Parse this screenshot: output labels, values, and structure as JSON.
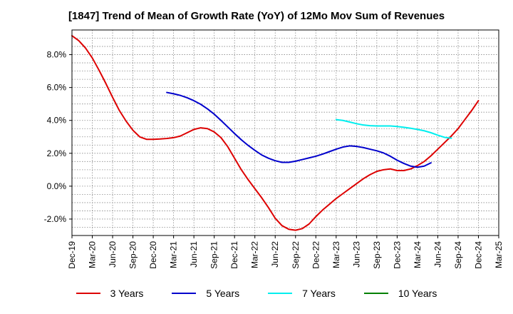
{
  "chart_data": {
    "type": "line",
    "title": "[1847]  Trend of Mean of Growth Rate (YoY) of 12Mo Mov Sum of Revenues",
    "xlabel": "",
    "ylabel": "",
    "ylim": [
      -3.0,
      9.5
    ],
    "y_ticks": [
      -2.0,
      0.0,
      2.0,
      4.0,
      6.0,
      8.0
    ],
    "y_tick_labels": [
      "-2.0%",
      "0.0%",
      "2.0%",
      "4.0%",
      "6.0%",
      "8.0%"
    ],
    "x_start": "Dec-19",
    "x_end": "Mar-25",
    "x_tick_labels": [
      "Dec-19",
      "Mar-20",
      "Jun-20",
      "Sep-20",
      "Dec-20",
      "Mar-21",
      "Jun-21",
      "Sep-21",
      "Dec-21",
      "Mar-22",
      "Jun-22",
      "Sep-22",
      "Dec-22",
      "Mar-23",
      "Jun-23",
      "Sep-23",
      "Dec-23",
      "Mar-24",
      "Jun-24",
      "Sep-24",
      "Dec-24",
      "Mar-25"
    ],
    "grid": true,
    "legend_position": "bottom",
    "series": [
      {
        "name": "3 Years",
        "color": "#dd0000",
        "start_month": 0,
        "values": [
          9.15,
          8.85,
          8.4,
          7.8,
          7.05,
          6.25,
          5.4,
          4.6,
          3.95,
          3.4,
          3.0,
          2.85,
          2.85,
          2.87,
          2.9,
          2.95,
          3.05,
          3.25,
          3.45,
          3.55,
          3.5,
          3.3,
          2.95,
          2.4,
          1.7,
          1.0,
          0.4,
          -0.15,
          -0.7,
          -1.3,
          -1.95,
          -2.4,
          -2.62,
          -2.68,
          -2.58,
          -2.3,
          -1.85,
          -1.45,
          -1.1,
          -0.75,
          -0.45,
          -0.15,
          0.15,
          0.45,
          0.7,
          0.9,
          1.0,
          1.05,
          0.95,
          0.95,
          1.05,
          1.25,
          1.5,
          1.85,
          2.25,
          2.65,
          3.05,
          3.5,
          4.05,
          4.6,
          5.2
        ]
      },
      {
        "name": "5 Years",
        "color": "#0000cc",
        "start_month": 14,
        "values": [
          5.7,
          5.62,
          5.52,
          5.38,
          5.2,
          4.98,
          4.7,
          4.38,
          4.0,
          3.6,
          3.2,
          2.82,
          2.48,
          2.18,
          1.9,
          1.7,
          1.55,
          1.45,
          1.45,
          1.52,
          1.62,
          1.72,
          1.82,
          1.95,
          2.1,
          2.25,
          2.38,
          2.45,
          2.42,
          2.35,
          2.25,
          2.15,
          2.02,
          1.82,
          1.58,
          1.38,
          1.22,
          1.15,
          1.22,
          1.42
        ]
      },
      {
        "name": "7 Years",
        "color": "#00eeee",
        "start_month": 39,
        "values": [
          4.05,
          4.0,
          3.9,
          3.8,
          3.72,
          3.68,
          3.66,
          3.66,
          3.66,
          3.63,
          3.58,
          3.52,
          3.45,
          3.37,
          3.25,
          3.1,
          2.97,
          2.92
        ]
      },
      {
        "name": "10 Years",
        "color": "#008000",
        "start_month": 0,
        "values": []
      }
    ]
  }
}
